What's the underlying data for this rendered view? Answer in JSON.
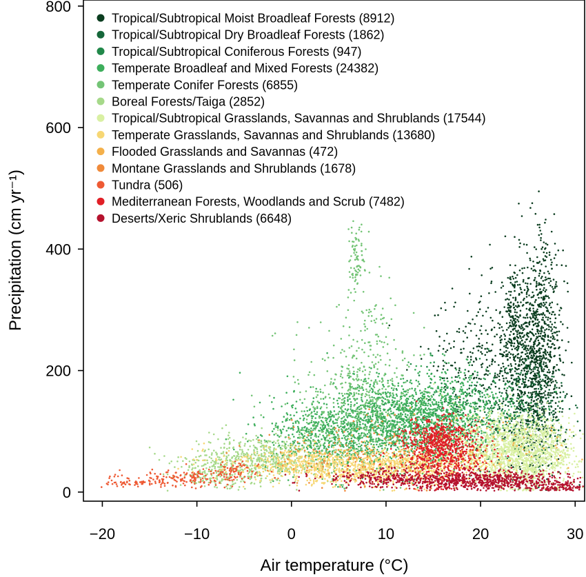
{
  "chart_data": {
    "type": "scatter",
    "xlabel": "Air temperature (°C)",
    "ylabel": "Precipitation (cm yr⁻¹)",
    "xlim": [
      -22,
      31
    ],
    "ylim": [
      -15,
      810
    ],
    "xticks": [
      "−20",
      "−10",
      "0",
      "10",
      "20",
      "30"
    ],
    "yticks": [
      "0",
      "200",
      "400",
      "600",
      "800"
    ],
    "legend_position": "top-left",
    "grid": false,
    "series": [
      {
        "name": "Tropical/Subtropical Moist Broadleaf Forests (8912)",
        "color": "#0b3d1f",
        "clusters": [
          {
            "x": 26,
            "y": 220,
            "sx": 1.3,
            "sy": 85,
            "n": 950
          },
          {
            "x": 23.5,
            "y": 260,
            "sx": 0.5,
            "sy": 70,
            "n": 200
          },
          {
            "x": 22,
            "y": 230,
            "sx": 2.8,
            "sy": 70,
            "n": 260
          },
          {
            "x": 19,
            "y": 210,
            "sx": 3,
            "sy": 45,
            "n": 100
          },
          {
            "x": 26.5,
            "y": 380,
            "sx": 0.6,
            "sy": 40,
            "n": 60
          }
        ]
      },
      {
        "name": "Tropical/Subtropical Dry Broadleaf Forests (1862)",
        "color": "#16673a",
        "clusters": [
          {
            "x": 25,
            "y": 120,
            "sx": 2.2,
            "sy": 45,
            "n": 350
          }
        ]
      },
      {
        "name": "Tropical/Subtropical Coniferous Forests (947)",
        "color": "#21884a",
        "clusters": [
          {
            "x": 18,
            "y": 140,
            "sx": 4,
            "sy": 40,
            "n": 200
          }
        ]
      },
      {
        "name": "Temperate Broadleaf and Mixed Forests (24382)",
        "color": "#3dae5c",
        "clusters": [
          {
            "x": 11,
            "y": 115,
            "sx": 5,
            "sy": 35,
            "n": 1500
          },
          {
            "x": 4,
            "y": 85,
            "sx": 3.5,
            "sy": 25,
            "n": 500
          },
          {
            "x": 17,
            "y": 130,
            "sx": 3,
            "sy": 35,
            "n": 500
          }
        ]
      },
      {
        "name": "Temperate Conifer Forests (6855)",
        "color": "#74c476",
        "clusters": [
          {
            "x": 7,
            "y": 140,
            "sx": 3.5,
            "sy": 60,
            "n": 500
          },
          {
            "x": 6.8,
            "y": 380,
            "sx": 0.4,
            "sy": 30,
            "n": 80
          },
          {
            "x": 8,
            "y": 260,
            "sx": 1.5,
            "sy": 60,
            "n": 100
          }
        ]
      },
      {
        "name": "Boreal Forests/Taiga (2852)",
        "color": "#a6d98a",
        "clusters": [
          {
            "x": -3,
            "y": 55,
            "sx": 3.5,
            "sy": 20,
            "n": 500
          },
          {
            "x": -8,
            "y": 35,
            "sx": 2.5,
            "sy": 12,
            "n": 200
          }
        ]
      },
      {
        "name": "Tropical/Subtropical Grasslands, Savannas and Shrublands (17544)",
        "color": "#d9f0a3",
        "clusters": [
          {
            "x": 25,
            "y": 65,
            "sx": 2.5,
            "sy": 30,
            "n": 1300
          },
          {
            "x": 20,
            "y": 80,
            "sx": 3,
            "sy": 30,
            "n": 400
          }
        ]
      },
      {
        "name": "Temperate Grasslands, Savannas and Shrublands (13680)",
        "color": "#f7d774",
        "clusters": [
          {
            "x": 3,
            "y": 45,
            "sx": 5,
            "sy": 15,
            "n": 600
          },
          {
            "x": 10,
            "y": 40,
            "sx": 4,
            "sy": 15,
            "n": 500
          },
          {
            "x": 17,
            "y": 45,
            "sx": 3,
            "sy": 15,
            "n": 200
          }
        ]
      },
      {
        "name": "Flooded Grasslands and Savannas (472)",
        "color": "#f4b04a",
        "clusters": [
          {
            "x": 18,
            "y": 70,
            "sx": 6,
            "sy": 30,
            "n": 100
          }
        ]
      },
      {
        "name": "Montane Grasslands and Shrublands (1678)",
        "color": "#f08a3a",
        "clusters": [
          {
            "x": 8,
            "y": 60,
            "sx": 6,
            "sy": 30,
            "n": 220
          }
        ]
      },
      {
        "name": "Tundra (506)",
        "color": "#ee5a34",
        "clusters": [
          {
            "x": -12,
            "y": 22,
            "sx": 3.5,
            "sy": 7,
            "n": 180
          },
          {
            "x": -17,
            "y": 15,
            "sx": 2,
            "sy": 3,
            "n": 40
          },
          {
            "x": -6,
            "y": 35,
            "sx": 1,
            "sy": 8,
            "n": 60
          }
        ]
      },
      {
        "name": "Mediterranean Forests, Woodlands and Scrub (7482)",
        "color": "#e11f26",
        "clusters": [
          {
            "x": 16,
            "y": 65,
            "sx": 2.2,
            "sy": 25,
            "n": 650
          },
          {
            "x": 15.5,
            "y": 95,
            "sx": 1.2,
            "sy": 15,
            "n": 150
          }
        ]
      },
      {
        "name": "Deserts/Xeric Shrublands (6648)",
        "color": "#b5122e",
        "clusters": [
          {
            "x": 21,
            "y": 18,
            "sx": 4,
            "sy": 8,
            "n": 600
          },
          {
            "x": 11,
            "y": 22,
            "sx": 4,
            "sy": 8,
            "n": 300
          },
          {
            "x": 28,
            "y": 8,
            "sx": 1.5,
            "sy": 4,
            "n": 100
          }
        ]
      }
    ]
  }
}
